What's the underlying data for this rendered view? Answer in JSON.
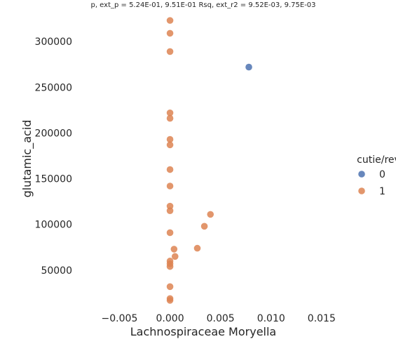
{
  "chart_data": {
    "type": "scatter",
    "title": "p, ext_p = 5.24E-01, 9.51E-01 Rsq, ext_r2 = 9.52E-03, 9.75E-03",
    "xlabel": "Lachnospiraceae Moryella",
    "ylabel": "glutamic_acid",
    "xlim": [
      -0.0085,
      0.0182
    ],
    "ylim": [
      10000,
      330000
    ],
    "x_ticks": [
      -0.005,
      0.0,
      0.005,
      0.01,
      0.015
    ],
    "x_tick_labels": [
      "−0.005",
      "0.000",
      "0.005",
      "0.010",
      "0.015"
    ],
    "y_ticks": [
      50000,
      100000,
      150000,
      200000,
      250000,
      300000
    ],
    "y_tick_labels": [
      "50000",
      "100000",
      "150000",
      "200000",
      "250000",
      "300000"
    ],
    "grid": false,
    "legend": {
      "title": "cutie/rev",
      "placement": "right",
      "entries": [
        "0",
        "1"
      ]
    },
    "series": [
      {
        "name": "0",
        "color": "#4c72b0",
        "points": [
          [
            0.0078,
            272000
          ]
        ]
      },
      {
        "name": "1",
        "color": "#dd8452",
        "points": [
          [
            0.0,
            323000
          ],
          [
            0.0,
            309000
          ],
          [
            0.0,
            289000
          ],
          [
            0.0,
            222000
          ],
          [
            0.0,
            216000
          ],
          [
            0.0,
            193000
          ],
          [
            0.0,
            187000
          ],
          [
            0.0,
            160000
          ],
          [
            0.0,
            142000
          ],
          [
            0.0,
            120000
          ],
          [
            0.0,
            115000
          ],
          [
            0.004,
            111000
          ],
          [
            0.0034,
            98000
          ],
          [
            0.0,
            91000
          ],
          [
            0.0027,
            74000
          ],
          [
            0.0004,
            73000
          ],
          [
            0.0005,
            65000
          ],
          [
            0.0,
            60000
          ],
          [
            0.0,
            57000
          ],
          [
            0.0,
            54000
          ],
          [
            0.0,
            32000
          ],
          [
            0.0,
            19000
          ],
          [
            0.0,
            17000
          ]
        ]
      }
    ]
  }
}
